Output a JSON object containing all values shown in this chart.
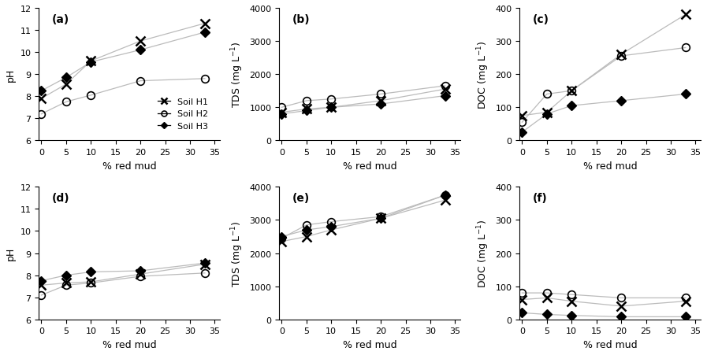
{
  "x": [
    0,
    5,
    10,
    20,
    33
  ],
  "panel_labels": [
    "(a)",
    "(b)",
    "(c)",
    "(d)",
    "(e)",
    "(f)"
  ],
  "top_row": {
    "a_pH": {
      "H1": [
        7.9,
        8.55,
        9.6,
        10.5,
        11.3
      ],
      "H2": [
        7.2,
        7.75,
        8.05,
        8.7,
        8.8
      ],
      "H3": [
        8.25,
        8.85,
        9.55,
        10.1,
        10.9
      ]
    },
    "b_TDS": {
      "H1": [
        850,
        950,
        1000,
        1200,
        1550
      ],
      "H2": [
        1000,
        1200,
        1250,
        1400,
        1650
      ],
      "H3": [
        800,
        900,
        1000,
        1100,
        1350
      ]
    },
    "c_DOC": {
      "H1": [
        75,
        85,
        150,
        260,
        380
      ],
      "H2": [
        55,
        140,
        150,
        255,
        280
      ],
      "H3": [
        25,
        80,
        105,
        120,
        140
      ]
    }
  },
  "bottom_row": {
    "d_pH": {
      "H1": [
        7.55,
        7.65,
        7.7,
        8.05,
        8.5
      ],
      "H2": [
        7.1,
        7.55,
        7.65,
        7.95,
        8.1
      ],
      "H3": [
        7.75,
        8.0,
        8.15,
        8.2,
        8.55
      ]
    },
    "e_TDS": {
      "H1": [
        2350,
        2500,
        2700,
        3050,
        3600
      ],
      "H2": [
        2450,
        2850,
        2950,
        3100,
        3750
      ],
      "H3": [
        2500,
        2700,
        2800,
        3050,
        3750
      ]
    },
    "f_DOC": {
      "H1": [
        60,
        65,
        55,
        40,
        55
      ],
      "H2": [
        80,
        80,
        75,
        65,
        65
      ],
      "H3": [
        20,
        15,
        12,
        8,
        8
      ]
    }
  },
  "ylims": {
    "a": [
      6,
      12
    ],
    "b": [
      0,
      4000
    ],
    "c": [
      0,
      400
    ],
    "d": [
      6,
      12
    ],
    "e": [
      0,
      4000
    ],
    "f": [
      0,
      400
    ]
  },
  "yticks": {
    "a": [
      6,
      7,
      8,
      9,
      10,
      11,
      12
    ],
    "b": [
      0,
      1000,
      2000,
      3000,
      4000
    ],
    "c": [
      0,
      100,
      200,
      300,
      400
    ],
    "d": [
      6,
      7,
      8,
      9,
      10,
      11,
      12
    ],
    "e": [
      0,
      1000,
      2000,
      3000,
      4000
    ],
    "f": [
      0,
      100,
      200,
      300,
      400
    ]
  },
  "xticks": [
    0,
    5,
    10,
    15,
    20,
    25,
    30,
    35
  ],
  "xlim": [
    -0.5,
    36
  ],
  "line_color": "#bbbbbb",
  "line_width": 0.9,
  "marker_size_x": 8,
  "marker_size_o": 7,
  "marker_size_d": 6
}
